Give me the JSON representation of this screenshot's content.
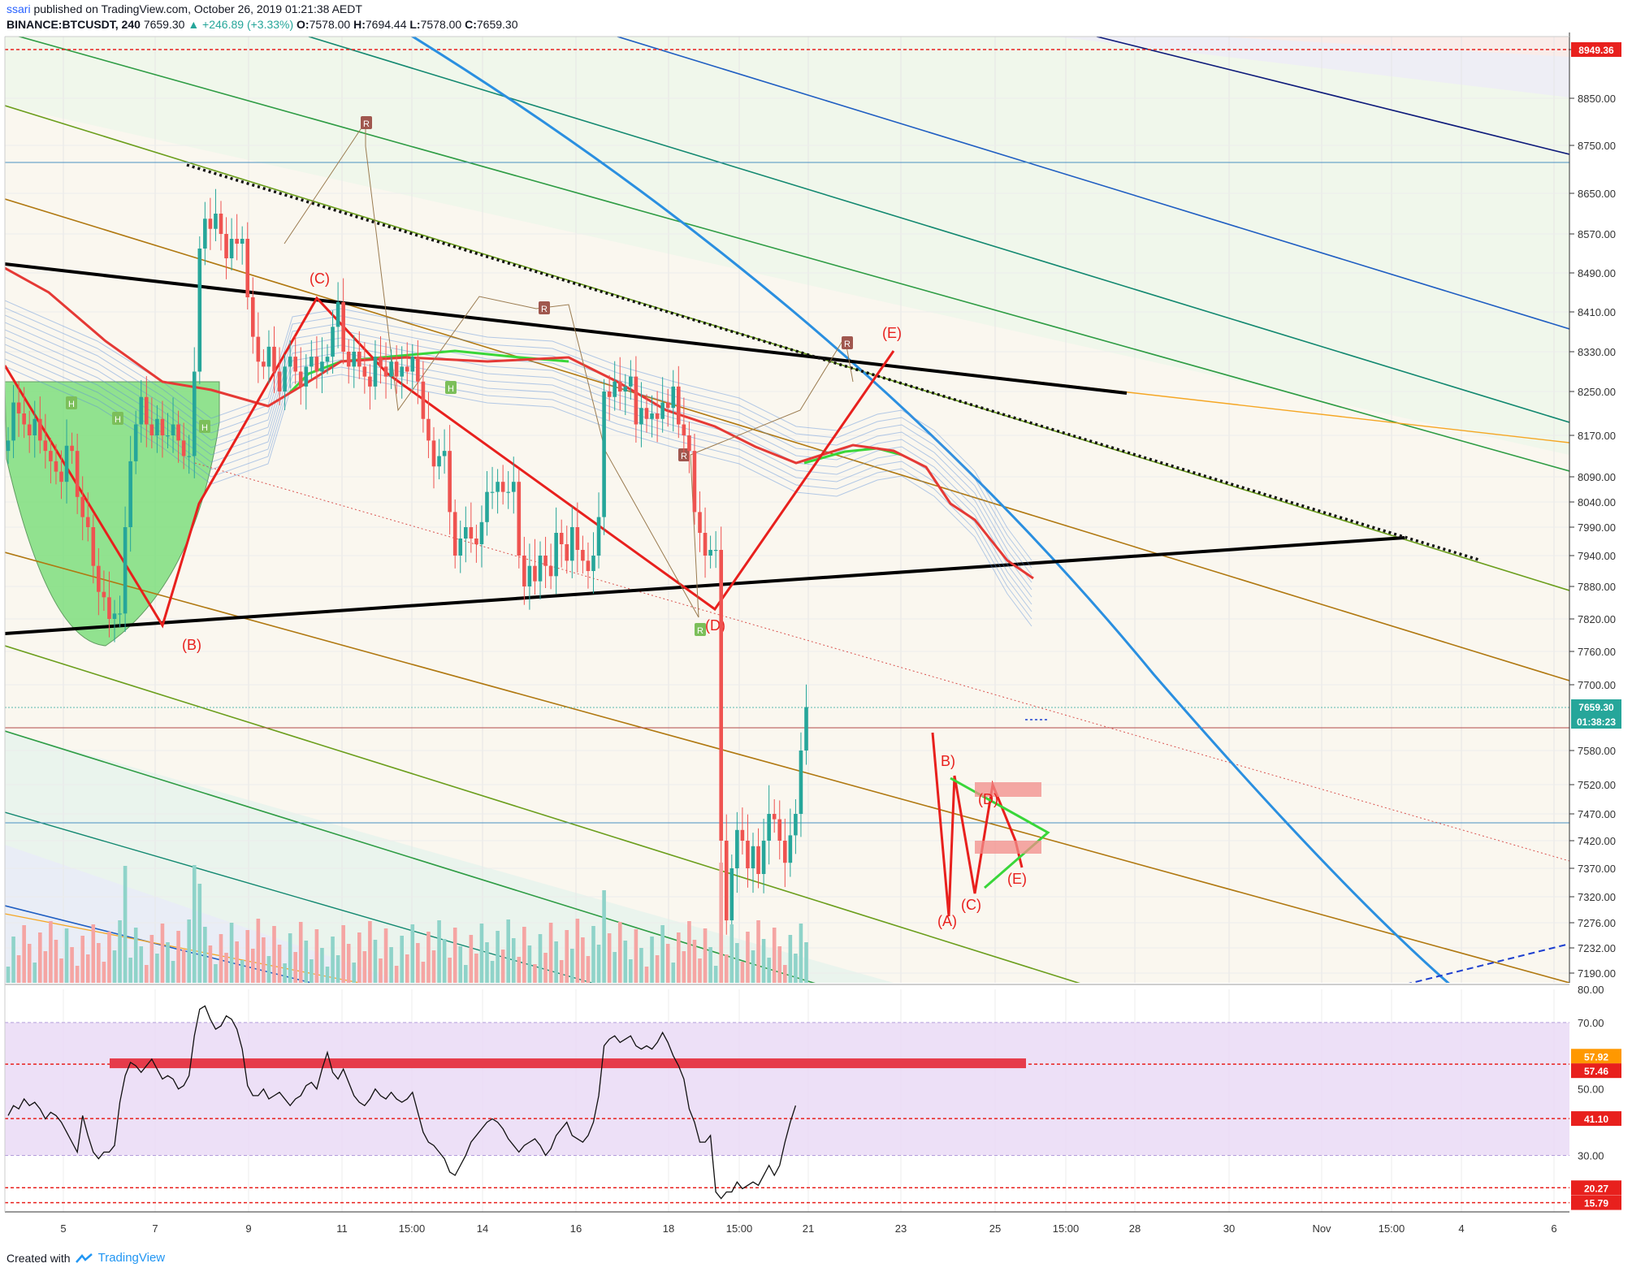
{
  "header": {
    "author": "ssari",
    "published": "published on TradingView.com, October 26, 2019 01:21:38 AEDT",
    "symbol": "BINANCE:BTCUSDT, 240",
    "last": "7659.30",
    "change": "▲ +246.89 (+3.33%)",
    "open_label": "O:",
    "open": "7578.00",
    "high_label": "H:",
    "high": "7694.44",
    "low_label": "L:",
    "low": "7578.00",
    "close_label": "C:",
    "close": "7659.30"
  },
  "footer": {
    "created_with": "Created with",
    "brand": "TradingView"
  },
  "colors": {
    "up": "#26a69a",
    "down": "#ef5350",
    "wave": "#e8201d",
    "ema": "#e53935",
    "trend": "#000000",
    "rsi_band": "#e9d8f5",
    "price_tag": "#26a69a",
    "level_tag": "#e8201d",
    "rsi_tag_orange": "#ff9800"
  },
  "chart_data": [
    {
      "type": "candlestick",
      "title": "BINANCE:BTCUSDT, 240",
      "y_axis_ticks": [
        "8949.36",
        "8850.00",
        "8750.00",
        "8650.00",
        "8570.00",
        "8490.00",
        "8410.00",
        "8330.00",
        "8250.00",
        "8170.00",
        "8090.00",
        "8040.00",
        "7990.00",
        "7940.00",
        "7880.00",
        "7820.00",
        "7760.00",
        "7700.00",
        "7580.00",
        "7520.00",
        "7470.00",
        "7420.00",
        "7370.00",
        "7320.00",
        "7276.00",
        "7232.00",
        "7190.00"
      ],
      "x_axis_ticks": [
        "5",
        "7",
        "9",
        "11",
        "15:00",
        "14",
        "16",
        "18",
        "15:00",
        "21",
        "23",
        "25",
        "15:00",
        "28",
        "30",
        "Nov",
        "15:00",
        "4",
        "6"
      ],
      "price_tag": "7659.30",
      "countdown_tag": "01:38:23",
      "resistance_tag": "8949.36",
      "wave_labels": [
        "(B)",
        "(C)",
        "(D)",
        "(E)",
        "(A)",
        "B)",
        "(C)",
        "(D)",
        "(E)"
      ],
      "pivot_markers": [
        "H",
        "H",
        "R",
        "H",
        "H",
        "R",
        "R",
        "R",
        "R"
      ],
      "close_series": [
        8160,
        8230,
        8210,
        8190,
        8170,
        8200,
        8160,
        8140,
        8120,
        8100,
        8080,
        8150,
        8140,
        8050,
        8010,
        7990,
        7920,
        7870,
        7860,
        7820,
        7830,
        7830,
        7990,
        8120,
        8190,
        8240,
        8190,
        8170,
        8200,
        8170,
        8170,
        8190,
        8160,
        8130,
        8130,
        8290,
        8540,
        8600,
        8580,
        8610,
        8570,
        8520,
        8560,
        8550,
        8560,
        8440,
        8360,
        8310,
        8300,
        8340,
        8290,
        8250,
        8300,
        8320,
        8290,
        8260,
        8300,
        8320,
        8290,
        8310,
        8320,
        8380,
        8430,
        8330,
        8300,
        8330,
        8300,
        8280,
        8260,
        8320,
        8300,
        8280,
        8310,
        8280,
        8300,
        8290,
        8320,
        8270,
        8200,
        8160,
        8110,
        8130,
        8140,
        8020,
        7940,
        7970,
        7990,
        7970,
        7960,
        8000,
        8060,
        8060,
        8080,
        8060,
        8060,
        8080,
        7940,
        7880,
        7920,
        7890,
        7940,
        7920,
        7900,
        7980,
        7960,
        7930,
        7990,
        7950,
        7930,
        7910,
        7940,
        8010,
        8250,
        8240,
        8270,
        8250,
        8260,
        8280,
        8190,
        8220,
        8200,
        8210,
        8200,
        8230,
        8220,
        8260,
        8190,
        8170,
        8140,
        8020,
        7980,
        7940,
        7950,
        7950,
        7420,
        7280,
        7370,
        7440,
        7420,
        7370,
        7410,
        7360,
        7420,
        7470,
        7460,
        7420,
        7380,
        7430,
        7470,
        7580,
        7659.3
      ],
      "ylim": [
        7165,
        8990
      ]
    },
    {
      "type": "line",
      "title": "RSI",
      "y_axis_ticks": [
        "80.00",
        "70.00",
        "57.92",
        "57.46",
        "50.00",
        "41.10",
        "30.00",
        "20.27",
        "15.79"
      ],
      "level_tags": [
        "57.92",
        "57.46",
        "41.10",
        "20.27",
        "15.79"
      ],
      "band": [
        30,
        70
      ],
      "ylim": [
        13,
        80
      ]
    }
  ]
}
